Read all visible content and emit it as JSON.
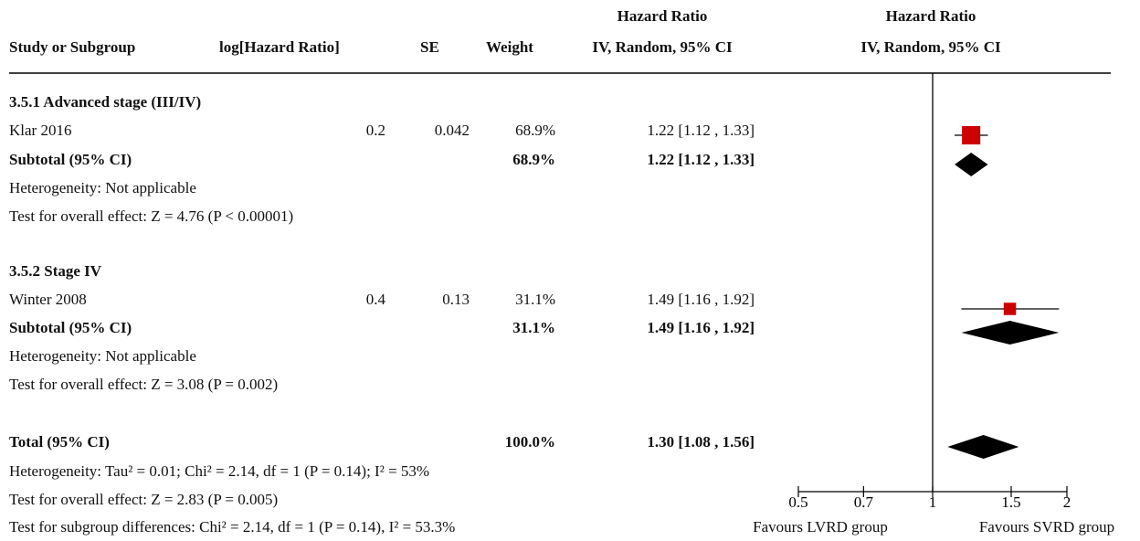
{
  "header": {
    "col_study": "Study or Subgroup",
    "col_log": "log[Hazard Ratio]",
    "col_se": "SE",
    "col_weight": "Weight",
    "col_hr_top": "Hazard Ratio",
    "col_hr_bottom": "IV, Random, 95% CI",
    "plot_hr_top": "Hazard Ratio",
    "plot_hr_bottom": "IV, Random, 95% CI"
  },
  "subgroup1": {
    "title": "3.5.1 Advanced stage (III/IV)",
    "study": {
      "name": "Klar 2016",
      "log": "0.2",
      "se": "0.042",
      "weight": "68.9%",
      "ci": "1.22 [1.12 , 1.33]"
    },
    "subtotal": {
      "label": "Subtotal (95% CI)",
      "weight": "68.9%",
      "ci": "1.22 [1.12 , 1.33]"
    },
    "heterogeneity": "Heterogeneity: Not applicable",
    "overall": "Test for overall effect: Z = 4.76 (P < 0.00001)"
  },
  "subgroup2": {
    "title": "3.5.2 Stage IV",
    "study": {
      "name": "Winter 2008",
      "log": "0.4",
      "se": "0.13",
      "weight": "31.1%",
      "ci": "1.49 [1.16 , 1.92]"
    },
    "subtotal": {
      "label": "Subtotal (95% CI)",
      "weight": "31.1%",
      "ci": "1.49 [1.16 , 1.92]"
    },
    "heterogeneity": "Heterogeneity: Not applicable",
    "overall": "Test for overall effect: Z = 3.08 (P = 0.002)"
  },
  "total": {
    "label": "Total (95% CI)",
    "weight": "100.0%",
    "ci": "1.30 [1.08 , 1.56]",
    "heterogeneity": "Heterogeneity: Tau² = 0.01; Chi² = 2.14, df = 1 (P = 0.14); I² = 53%",
    "overall": "Test for overall effect: Z = 2.83 (P = 0.005)",
    "subgroup_diff": "Test for subgroup differences: Chi² = 2.14, df = 1 (P = 0.14), I² = 53.3%"
  },
  "axis": {
    "favours_left": "Favours LVRD group",
    "favours_right": "Favours SVRD group"
  },
  "colors": {
    "study_marker": "#cc0000",
    "summary_diamond": "#000000",
    "line": "#000000"
  },
  "chart_data": {
    "type": "forest",
    "scale": "log",
    "null_line": 1,
    "xlim": [
      0.5,
      2
    ],
    "ticks": [
      0.5,
      0.7,
      1,
      1.5,
      2
    ],
    "tick_labels": [
      "0.5",
      "0.7",
      "1",
      "1.5",
      "2"
    ],
    "studies": [
      {
        "name": "Klar 2016",
        "hr": 1.22,
        "lower": 1.12,
        "upper": 1.33,
        "weight": 68.9
      },
      {
        "name": "Winter 2008",
        "hr": 1.49,
        "lower": 1.16,
        "upper": 1.92,
        "weight": 31.1
      }
    ],
    "summaries": [
      {
        "name": "Subtotal 3.5.1",
        "hr": 1.22,
        "lower": 1.12,
        "upper": 1.33
      },
      {
        "name": "Subtotal 3.5.2",
        "hr": 1.49,
        "lower": 1.16,
        "upper": 1.92
      },
      {
        "name": "Total",
        "hr": 1.3,
        "lower": 1.08,
        "upper": 1.56
      }
    ]
  }
}
